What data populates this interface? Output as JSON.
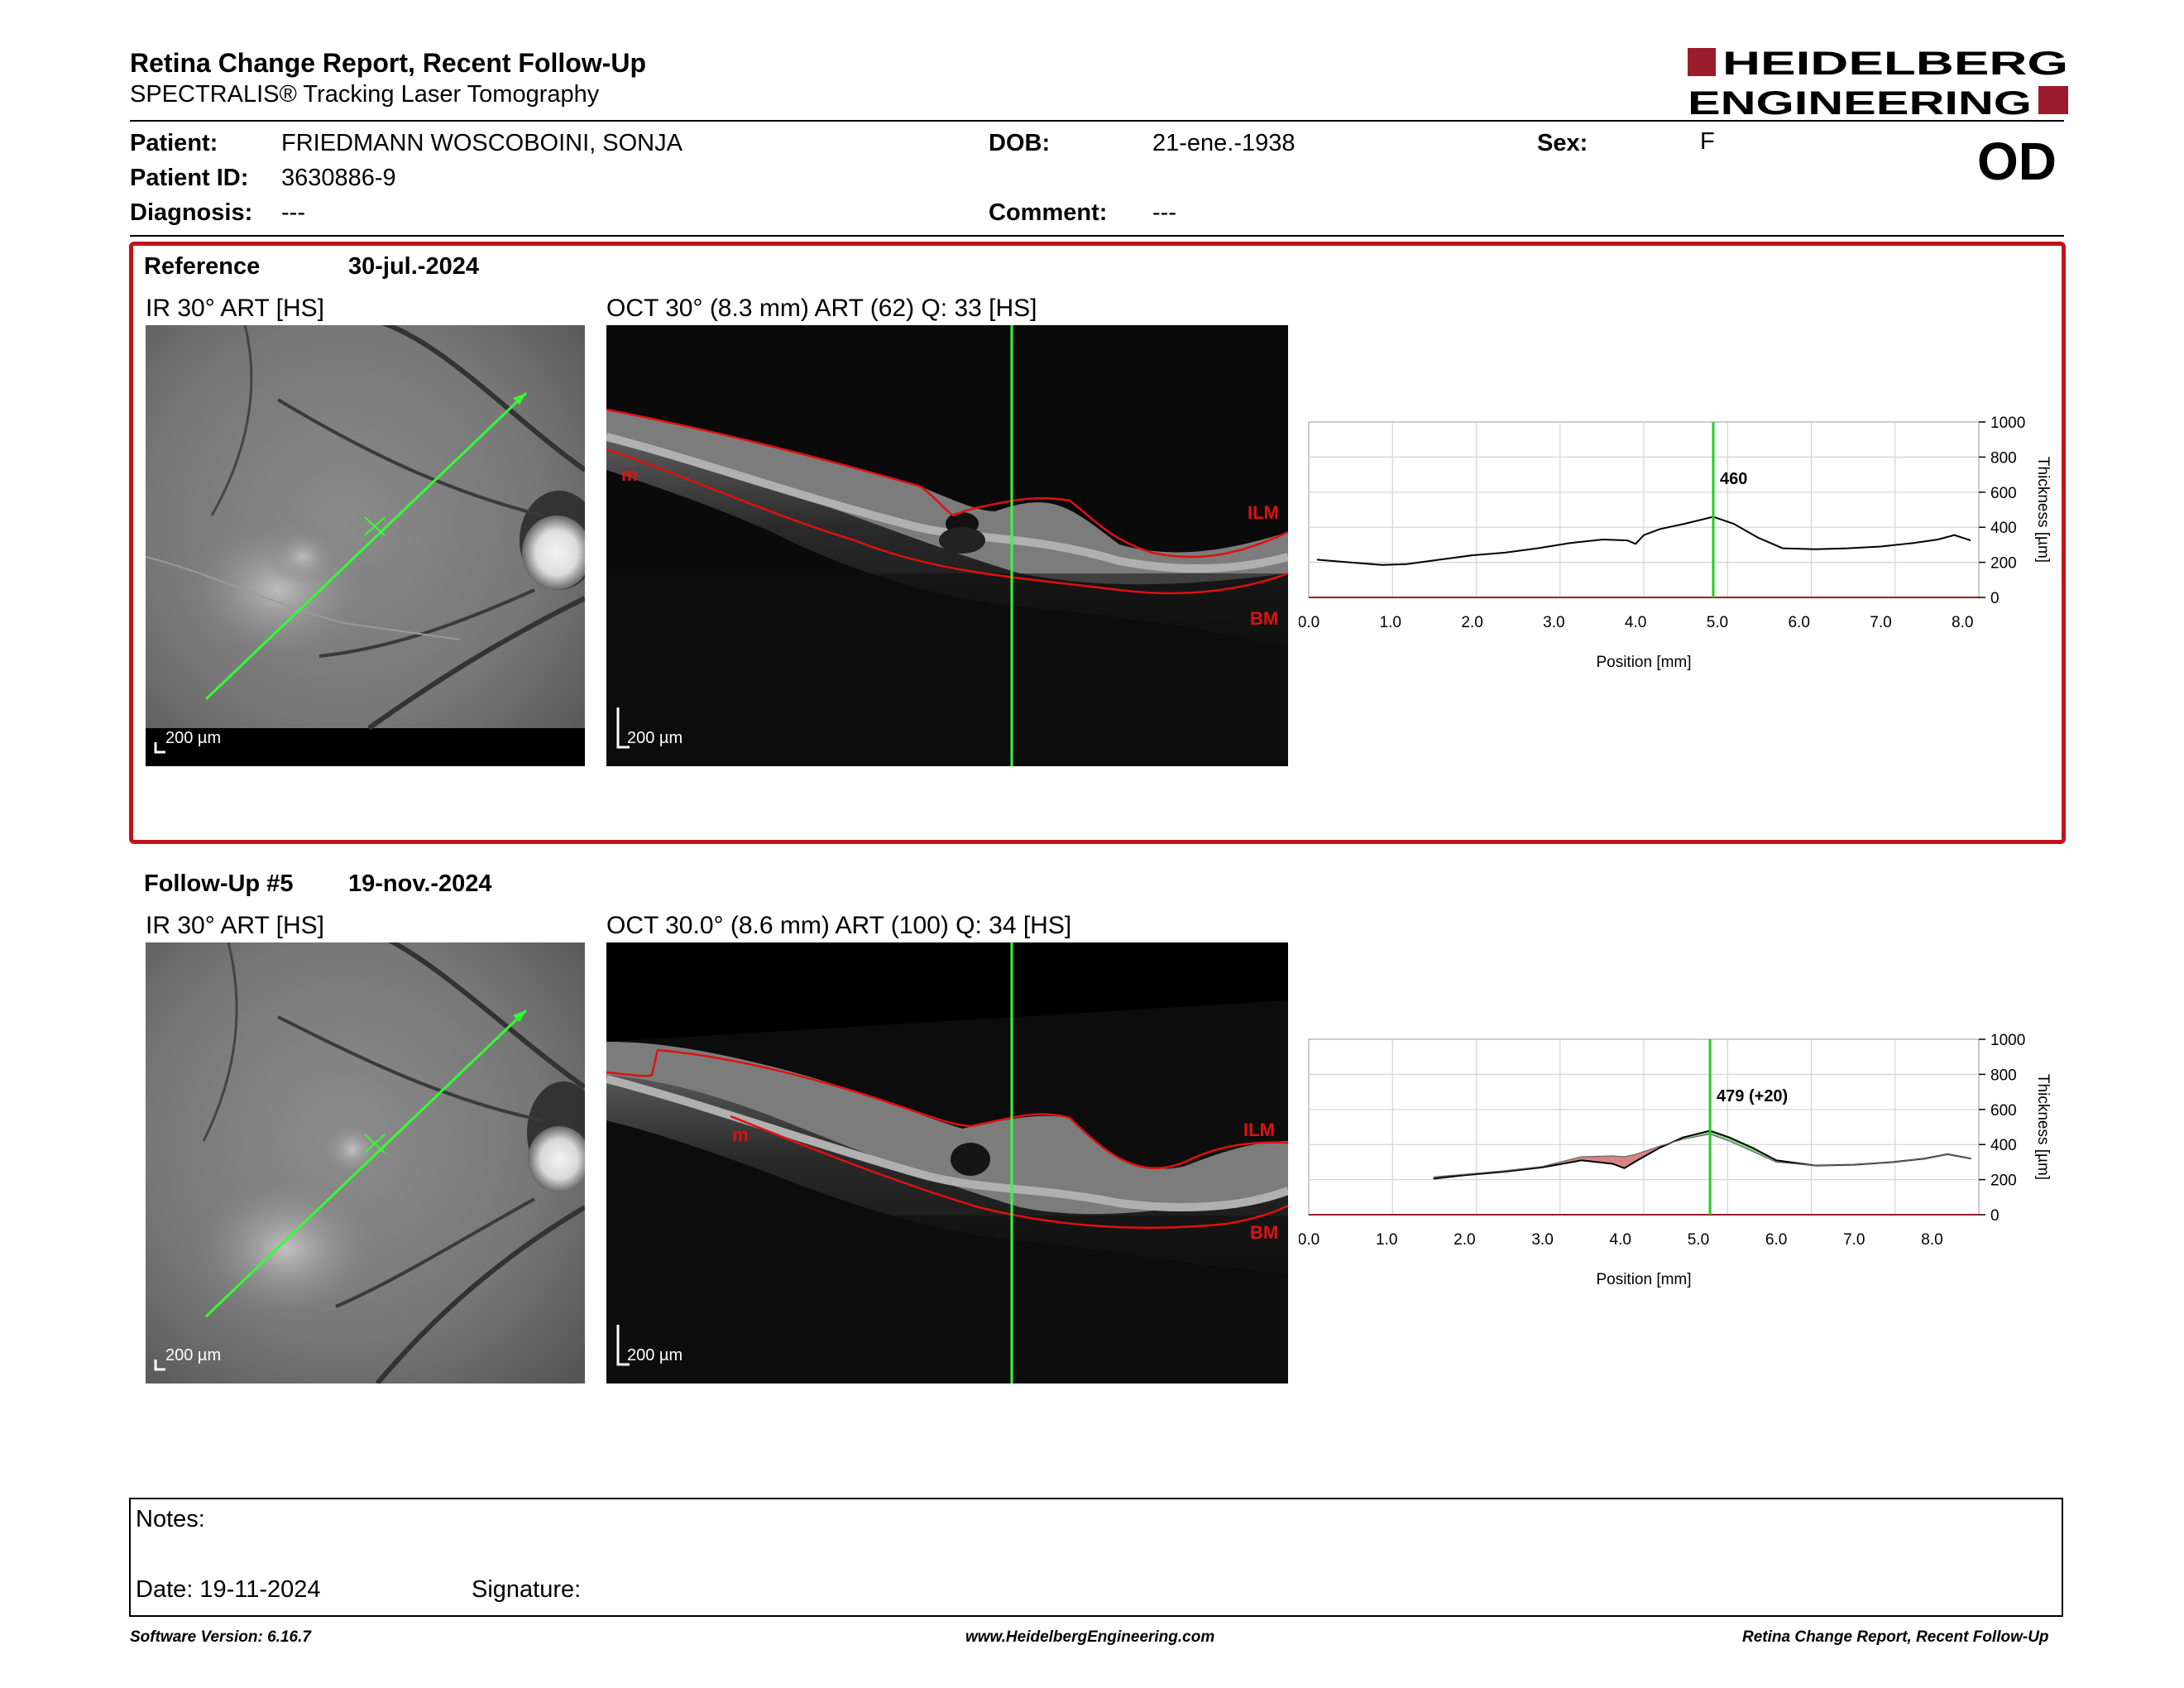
{
  "header": {
    "title": "Retina Change Report, Recent Follow-Up",
    "subtitle": "SPECTRALIS® Tracking Laser Tomography",
    "logo_line1": "HEIDELBERG",
    "logo_line2": "ENGINEERING",
    "brand_color": "#9b1c2c"
  },
  "patient": {
    "patient_label": "Patient:",
    "patient_name": "FRIEDMANN WOSCOBOINI,  SONJA",
    "id_label": "Patient ID:",
    "id_value": "3630886-9",
    "diagnosis_label": "Diagnosis:",
    "diagnosis_value": "---",
    "dob_label": "DOB:",
    "dob_value": "21-ene.-1938",
    "comment_label": "Comment:",
    "comment_value": "---",
    "sex_label": "Sex:",
    "sex_value": "F",
    "eye": "OD"
  },
  "reference": {
    "label": "Reference",
    "date": "30-jul.-2024",
    "ir_label": "IR 30° ART [HS]",
    "oct_label": "OCT 30° (8.3 mm) ART (62) Q: 33 [HS]",
    "scale_ir": "200 µm",
    "scale_oct": "200 µm",
    "ilm_tag": "ILM",
    "bm_tag": "BM",
    "m_tag": "m"
  },
  "followup": {
    "label": "Follow-Up #5",
    "date": "19-nov.-2024",
    "ir_label": "IR 30° ART [HS]",
    "oct_label": "OCT 30.0° (8.6 mm) ART (100) Q: 34 [HS]",
    "scale_ir": "200 µm",
    "scale_oct": "200 µm",
    "ilm_tag": "ILM",
    "bm_tag": "BM",
    "m_tag": "m"
  },
  "chart_data": [
    {
      "type": "line",
      "xlabel": "Position [mm]",
      "ylabel": "Thickness [µm]",
      "xlim": [
        0,
        8.2
      ],
      "ylim": [
        0,
        1000
      ],
      "xticks": [
        "0.0",
        "1.0",
        "2.0",
        "3.0",
        "4.0",
        "5.0",
        "6.0",
        "7.0",
        "8.0"
      ],
      "yticks": [
        "0",
        "200",
        "400",
        "600",
        "800",
        "1000"
      ],
      "grid": true,
      "marker_x": 4.95,
      "marker_label": "460",
      "series": [
        {
          "x": [
            0.1,
            0.5,
            0.9,
            1.2,
            1.6,
            2.0,
            2.4,
            2.8,
            3.2,
            3.6,
            3.9,
            4.0,
            4.1,
            4.3,
            4.6,
            4.95,
            5.2,
            5.5,
            5.8,
            6.2,
            6.6,
            7.0,
            7.4,
            7.7,
            7.9,
            8.1
          ],
          "y": [
            215,
            200,
            185,
            190,
            215,
            240,
            255,
            280,
            310,
            330,
            325,
            305,
            355,
            390,
            420,
            460,
            420,
            340,
            280,
            275,
            280,
            290,
            310,
            330,
            355,
            325
          ]
        }
      ],
      "line_color": "#000000",
      "marker_color": "#22cc22"
    },
    {
      "type": "line",
      "xlabel": "Position [mm]",
      "ylabel": "Thickness [µm]",
      "xlim": [
        0,
        8.6
      ],
      "ylim": [
        0,
        1000
      ],
      "xticks": [
        "0.0",
        "1.0",
        "2.0",
        "3.0",
        "4.0",
        "5.0",
        "6.0",
        "7.0",
        "8.0"
      ],
      "yticks": [
        "0",
        "200",
        "400",
        "600",
        "800",
        "1000"
      ],
      "grid": true,
      "marker_x": 5.15,
      "marker_label": "479 (+20)",
      "series": [
        {
          "x": [
            1.6,
            2.0,
            2.5,
            3.0,
            3.5,
            3.9,
            4.05,
            4.2,
            4.5,
            4.8,
            5.15,
            5.4,
            5.7,
            6.0,
            6.5,
            7.0,
            7.5,
            7.9,
            8.2,
            8.5
          ],
          "y": [
            205,
            225,
            245,
            270,
            310,
            290,
            265,
            305,
            380,
            440,
            479,
            440,
            380,
            310,
            280,
            285,
            300,
            320,
            345,
            320
          ]
        },
        {
          "x": [
            1.6,
            2.0,
            2.5,
            3.0,
            3.5,
            3.9,
            4.05,
            4.2,
            4.5,
            4.8,
            5.15,
            5.4,
            5.7,
            6.0,
            6.5,
            7.0,
            7.5,
            7.9,
            8.2,
            8.5
          ],
          "y": [
            215,
            230,
            250,
            275,
            330,
            335,
            330,
            345,
            390,
            430,
            460,
            420,
            360,
            300,
            280,
            285,
            300,
            320,
            345,
            320
          ]
        }
      ],
      "line_color": "#000000",
      "marker_color": "#22cc22",
      "increase_fill": "#66cc66",
      "decrease_fill": "#cc6666"
    }
  ],
  "notes": {
    "notes_label": "Notes:",
    "date_label": "Date: 19-11-2024",
    "signature_label": "Signature:"
  },
  "footer": {
    "software": "Software Version: 6.16.7",
    "website": "www.HeidelbergEngineering.com",
    "report_name": "Retina Change Report, Recent Follow-Up"
  }
}
